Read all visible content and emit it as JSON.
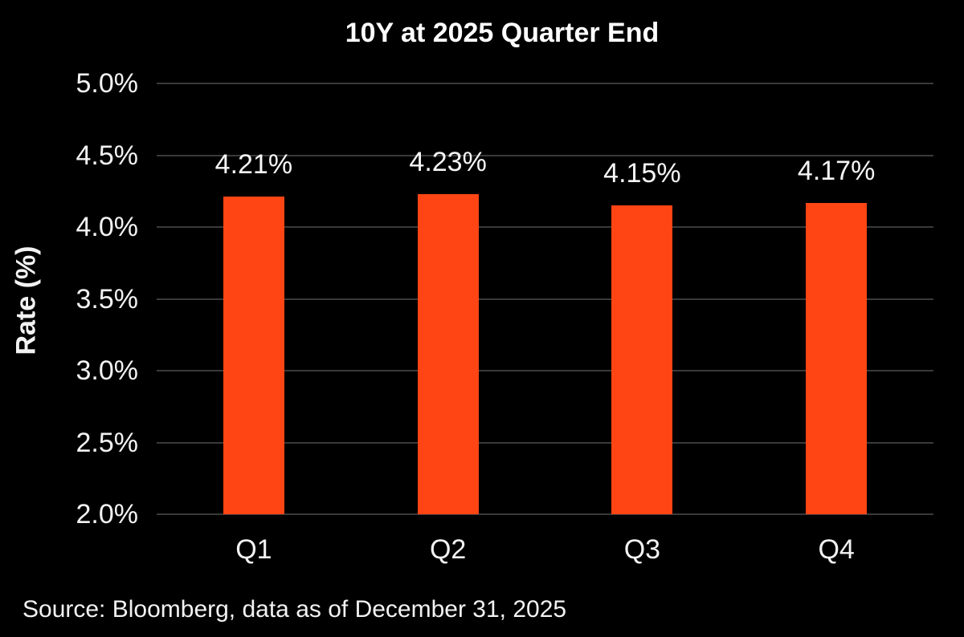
{
  "chart_data": {
    "type": "bar",
    "title": "10Y at 2025 Quarter End",
    "ylabel": "Rate (%)",
    "xlabel": "",
    "categories": [
      "Q1",
      "Q2",
      "Q3",
      "Q4"
    ],
    "values": [
      4.21,
      4.23,
      4.15,
      4.17
    ],
    "bar_labels": [
      "4.21%",
      "4.23%",
      "4.15%",
      "4.17%"
    ],
    "ylim": [
      2.0,
      5.0
    ],
    "ytick_values": [
      5.0,
      4.5,
      4.0,
      3.5,
      3.0,
      2.5,
      2.0
    ],
    "ytick_labels": [
      "5.0%",
      "4.5%",
      "4.0%",
      "3.5%",
      "3.0%",
      "2.5%",
      "2.0%"
    ],
    "grid": "horizontal",
    "legend": "none",
    "colors": {
      "background": "#000000",
      "bar": "#FF4514",
      "text": "#F2F2F2",
      "gridline": "#3A3A3A",
      "axis_line": "#3A3A3A"
    },
    "source_note": "Source: Bloomberg, data as of December 31, 2025"
  }
}
